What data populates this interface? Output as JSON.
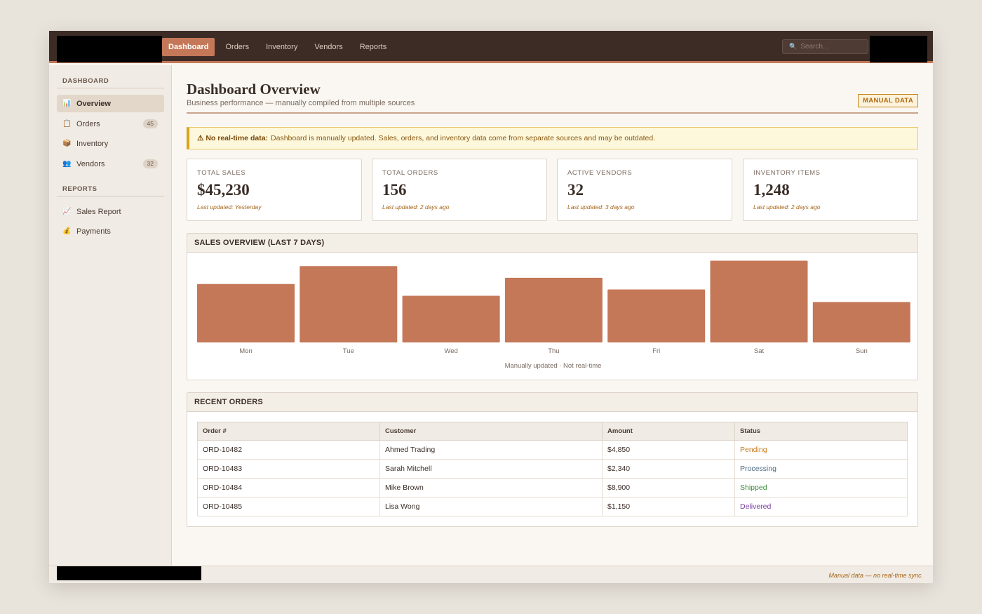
{
  "topbar": {
    "nav": [
      {
        "label": "Dashboard",
        "active": true
      },
      {
        "label": "Orders",
        "active": false
      },
      {
        "label": "Inventory",
        "active": false
      },
      {
        "label": "Vendors",
        "active": false
      },
      {
        "label": "Reports",
        "active": false
      }
    ],
    "search_placeholder": "Search..."
  },
  "sidebar": {
    "sections": [
      {
        "heading": "DASHBOARD",
        "items": [
          {
            "label": "Overview",
            "icon": "bar-chart-icon",
            "glyph": "📊",
            "badge": "",
            "active": true
          },
          {
            "label": "Orders",
            "icon": "clipboard-icon",
            "glyph": "📋",
            "badge": "45",
            "active": false
          },
          {
            "label": "Inventory",
            "icon": "package-icon",
            "glyph": "📦",
            "badge": "",
            "active": false
          },
          {
            "label": "Vendors",
            "icon": "people-icon",
            "glyph": "👥",
            "badge": "32",
            "active": false
          }
        ]
      },
      {
        "heading": "REPORTS",
        "items": [
          {
            "label": "Sales Report",
            "icon": "trend-chart-icon",
            "glyph": "📈",
            "badge": "",
            "active": false
          },
          {
            "label": "Payments",
            "icon": "money-bag-icon",
            "glyph": "💰",
            "badge": "",
            "active": false
          }
        ]
      }
    ]
  },
  "header": {
    "title": "Dashboard Overview",
    "subtitle": "Business performance — manually compiled from multiple sources",
    "tag": "MANUAL DATA"
  },
  "alert": {
    "icon": "⚠",
    "strong": "No real-time data:",
    "text": "Dashboard is manually updated. Sales, orders, and inventory data come from separate sources and may be outdated."
  },
  "kpis": [
    {
      "label": "TOTAL SALES",
      "value": "$45,230",
      "updated": "Last updated: Yesterday"
    },
    {
      "label": "TOTAL ORDERS",
      "value": "156",
      "updated": "Last updated: 2 days ago"
    },
    {
      "label": "ACTIVE VENDORS",
      "value": "32",
      "updated": "Last updated: 3 days ago"
    },
    {
      "label": "INVENTORY ITEMS",
      "value": "1,248",
      "updated": "Last updated: 2 days ago"
    }
  ],
  "sales_panel": {
    "title": "SALES OVERVIEW (LAST 7 DAYS)",
    "caption": "Manually updated · Not real-time"
  },
  "chart_data": {
    "type": "bar",
    "categories": [
      "Mon",
      "Tue",
      "Wed",
      "Thu",
      "Fri",
      "Sat",
      "Sun"
    ],
    "values": [
      65,
      85,
      52,
      72,
      59,
      91,
      45
    ],
    "ylim": [
      0,
      100
    ],
    "grid": false,
    "color": "#c47858"
  },
  "orders_panel": {
    "title": "RECENT ORDERS",
    "columns": [
      "Order #",
      "Customer",
      "Amount",
      "Status"
    ],
    "rows": [
      {
        "order": "ORD-10482",
        "customer": "Ahmed Trading",
        "amount": "$4,850",
        "status": "Pending"
      },
      {
        "order": "ORD-10483",
        "customer": "Sarah Mitchell",
        "amount": "$2,340",
        "status": "Processing"
      },
      {
        "order": "ORD-10484",
        "customer": "Mike Brown",
        "amount": "$8,900",
        "status": "Shipped"
      },
      {
        "order": "ORD-10485",
        "customer": "Lisa Wong",
        "amount": "$1,150",
        "status": "Delivered"
      }
    ],
    "status_colors": {
      "Pending": "#c47a1a",
      "Processing": "#4d6a80",
      "Shipped": "#3d8a3d",
      "Delivered": "#7a3fa0"
    }
  },
  "footer": {
    "note": "Manual data — no real-time sync."
  }
}
